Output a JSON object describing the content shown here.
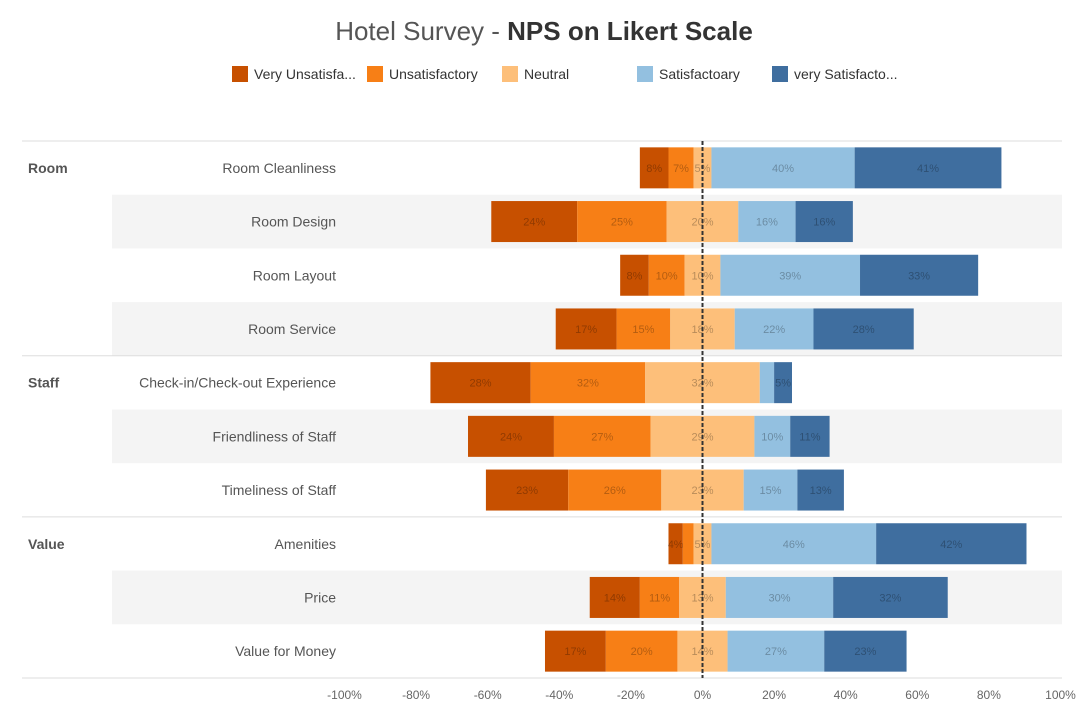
{
  "title": {
    "prefix": "Hotel Survey - ",
    "bold": "NPS on Likert Scale"
  },
  "legend": [
    {
      "label": "Very Unsatisfa...",
      "color": "#c75000"
    },
    {
      "label": "Unsatisfactory",
      "color": "#f77f16"
    },
    {
      "label": "Neutral",
      "color": "#fdbf7a"
    },
    {
      "label": "Satisfactoary",
      "color": "#93c0e0"
    },
    {
      "label": "very Satisfacto...",
      "color": "#3f6e9f"
    }
  ],
  "chart_data": {
    "type": "bar",
    "orientation": "horizontal-diverging-stacked",
    "series": [
      {
        "name": "Very Unsatisfa...",
        "color": "#c75000"
      },
      {
        "name": "Unsatisfactory",
        "color": "#f77f16"
      },
      {
        "name": "Neutral",
        "color": "#fdbf7a"
      },
      {
        "name": "Satisfactoary",
        "color": "#93c0e0"
      },
      {
        "name": "very Satisfacto...",
        "color": "#3f6e9f"
      }
    ],
    "groups": [
      {
        "name": "Room",
        "items": [
          {
            "label": "Room Cleanliness",
            "values": [
              8,
              7,
              5,
              40,
              41
            ]
          },
          {
            "label": "Room Design",
            "values": [
              24,
              25,
              20,
              16,
              16
            ]
          },
          {
            "label": "Room Layout",
            "values": [
              8,
              10,
              10,
              39,
              33
            ]
          },
          {
            "label": "Room Service",
            "values": [
              17,
              15,
              18,
              22,
              28
            ]
          }
        ]
      },
      {
        "name": "Staff",
        "items": [
          {
            "label": "Check-in/Check-out Experience",
            "values": [
              28,
              32,
              32,
              4,
              5
            ]
          },
          {
            "label": "Friendliness of Staff",
            "values": [
              24,
              27,
              29,
              10,
              11
            ]
          },
          {
            "label": "Timeliness of Staff",
            "values": [
              23,
              26,
              23,
              15,
              13
            ]
          }
        ]
      },
      {
        "name": "Value",
        "items": [
          {
            "label": "Amenities",
            "values": [
              4,
              3,
              5,
              46,
              42
            ]
          },
          {
            "label": "Price",
            "values": [
              14,
              11,
              13,
              30,
              32
            ]
          },
          {
            "label": "Value for Money",
            "values": [
              17,
              20,
              14,
              27,
              23
            ]
          }
        ]
      }
    ],
    "data_labels": [
      [
        "8%",
        "7%",
        "5%",
        "40%",
        "41%"
      ],
      [
        "24%",
        "25%",
        "20%",
        "16%",
        "16%"
      ],
      [
        "8%",
        "10%",
        "10%",
        "39%",
        "33%"
      ],
      [
        "17%",
        "15%",
        "18%",
        "22%",
        "28%"
      ],
      [
        "28%",
        "32%",
        "32%",
        "",
        "5%"
      ],
      [
        "24%",
        "27%",
        "29%",
        "10%",
        "11%"
      ],
      [
        "23%",
        "26%",
        "23%",
        "15%",
        "13%"
      ],
      [
        "4%",
        "",
        "5%",
        "46%",
        "42%"
      ],
      [
        "14%",
        "11%",
        "13%",
        "30%",
        "32%"
      ],
      [
        "17%",
        "20%",
        "14%",
        "27%",
        "23%"
      ]
    ],
    "xlim": [
      -100,
      100
    ],
    "x_ticks": [
      "-100%",
      "-80%",
      "-60%",
      "-40%",
      "-20%",
      "0%",
      "20%",
      "40%",
      "60%",
      "80%",
      "100%"
    ],
    "grid": false,
    "legend_position": "top"
  }
}
